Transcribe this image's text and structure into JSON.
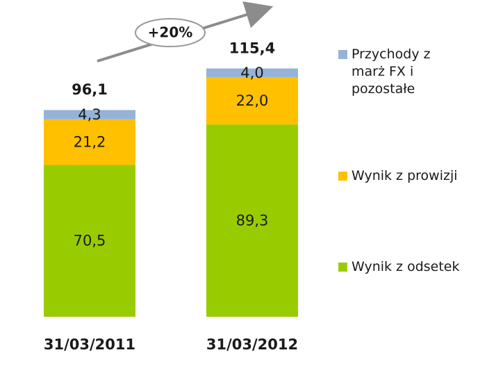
{
  "chart_data": {
    "type": "stacked_bar",
    "annotation": "+20%",
    "categories": [
      "31/03/2011",
      "31/03/2012"
    ],
    "series": [
      {
        "name": "Wynik z odsetek",
        "color": "#99cc00",
        "values": [
          70.5,
          89.3
        ],
        "value_labels": [
          "70,5",
          "89,3"
        ]
      },
      {
        "name": "Wynik z prowizji",
        "color": "#ffc000",
        "values": [
          21.2,
          22.0
        ],
        "value_labels": [
          "21,2",
          "22,0"
        ]
      },
      {
        "name": "Przychody z marż FX i pozostałe",
        "color": "#95b3d7",
        "values": [
          4.3,
          4.0
        ],
        "value_labels": [
          "4,3",
          "4,0"
        ]
      }
    ],
    "totals": [
      96.1,
      115.4
    ],
    "total_labels": [
      "96,1",
      "115,4"
    ],
    "legend": "right"
  }
}
